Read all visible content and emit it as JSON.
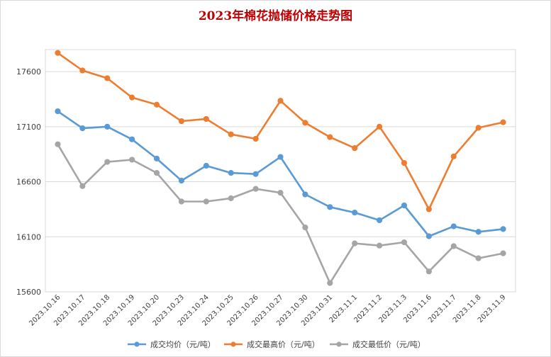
{
  "chart_data": {
    "type": "line",
    "title": "2023年棉花抛储价格走势图",
    "categories": [
      "2023.10.16",
      "2023.10.17",
      "2023.10.18",
      "2023.10.19",
      "2023.10.20",
      "2023.10.23",
      "2023.10.24",
      "2023.10.25",
      "2023.10.26",
      "2023.10.27",
      "2023.10.30",
      "2023.10.31",
      "2023.11.1",
      "2023.11.2",
      "2023.11.3",
      "2023.11.6",
      "2023.11.7",
      "2023.11.8",
      "2023.11.9"
    ],
    "ylim": [
      15600,
      17800
    ],
    "yticks": [
      15600,
      16100,
      16600,
      17100,
      17600
    ],
    "grid": true,
    "legend_position": "bottom",
    "series": [
      {
        "name": "成交均价（元/吨）",
        "color": "#5b9bd5",
        "values": [
          17240,
          17085,
          17100,
          16985,
          16810,
          16610,
          16745,
          16680,
          16670,
          16825,
          16485,
          16370,
          16320,
          16250,
          16385,
          16105,
          16195,
          16145,
          16170
        ]
      },
      {
        "name": "成交最高价（元/吨）",
        "color": "#ed7d31",
        "values": [
          17770,
          17610,
          17540,
          17365,
          17300,
          17150,
          17170,
          17030,
          16990,
          17335,
          17135,
          17005,
          16905,
          17100,
          16770,
          16350,
          16830,
          17090,
          17140
        ]
      },
      {
        "name": "成交最低价（元/吨）",
        "color": "#a5a5a5",
        "values": [
          16940,
          16560,
          16780,
          16800,
          16680,
          16420,
          16420,
          16450,
          16535,
          16500,
          16185,
          15680,
          16040,
          16020,
          16050,
          15785,
          16015,
          15905,
          15950
        ]
      }
    ]
  }
}
